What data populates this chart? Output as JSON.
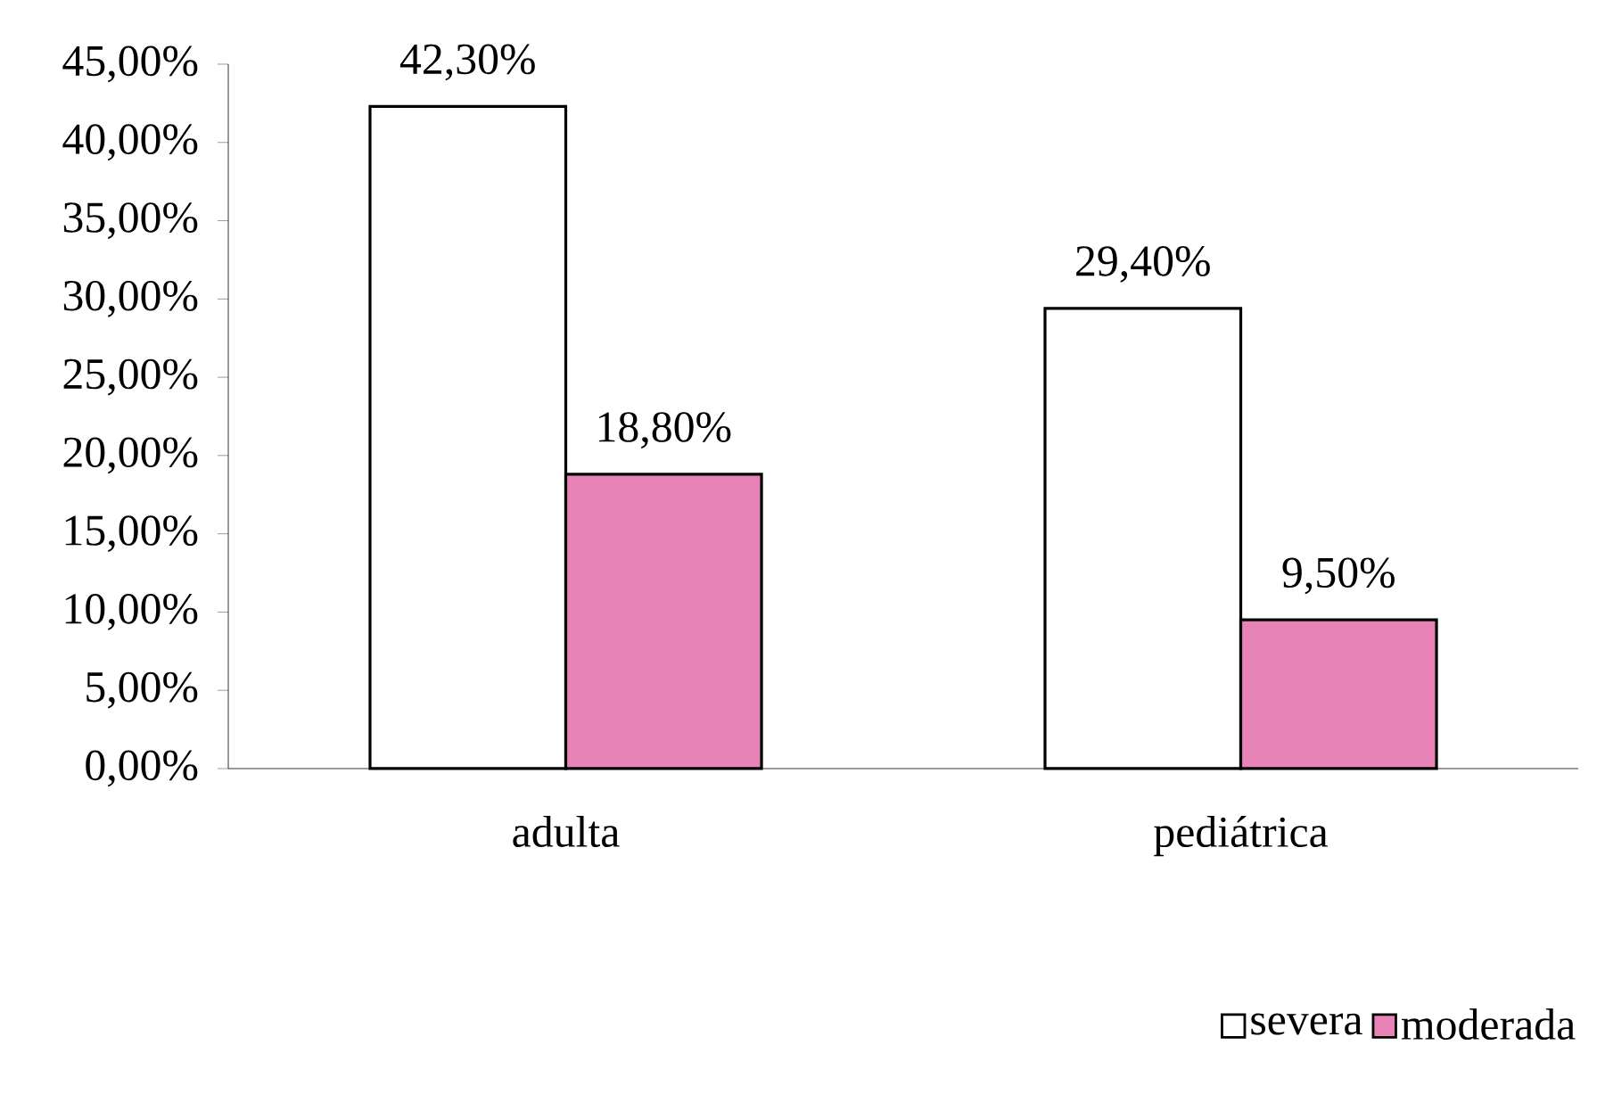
{
  "chart_data": {
    "type": "bar",
    "categories": [
      "adulta",
      "pediátrica"
    ],
    "series": [
      {
        "name": "severa",
        "color": "#ffffff",
        "values": [
          42.3,
          29.4
        ],
        "value_labels": [
          "42,30%",
          "29,40%"
        ]
      },
      {
        "name": "moderada",
        "color": "#e783b6",
        "values": [
          18.8,
          9.5
        ],
        "value_labels": [
          "18,80%",
          "9,50%"
        ]
      }
    ],
    "ylim": [
      0,
      45
    ],
    "yticks": [
      {
        "value": 0,
        "label": "0,00%"
      },
      {
        "value": 5,
        "label": "5,00%"
      },
      {
        "value": 10,
        "label": "10,00%"
      },
      {
        "value": 15,
        "label": "15,00%"
      },
      {
        "value": 20,
        "label": "20,00%"
      },
      {
        "value": 25,
        "label": "25,00%"
      },
      {
        "value": 30,
        "label": "30,00%"
      },
      {
        "value": 35,
        "label": "35,00%"
      },
      {
        "value": 40,
        "label": "40,00%"
      },
      {
        "value": 45,
        "label": "45,00%"
      }
    ],
    "grid": false,
    "legend": "bottom right"
  }
}
